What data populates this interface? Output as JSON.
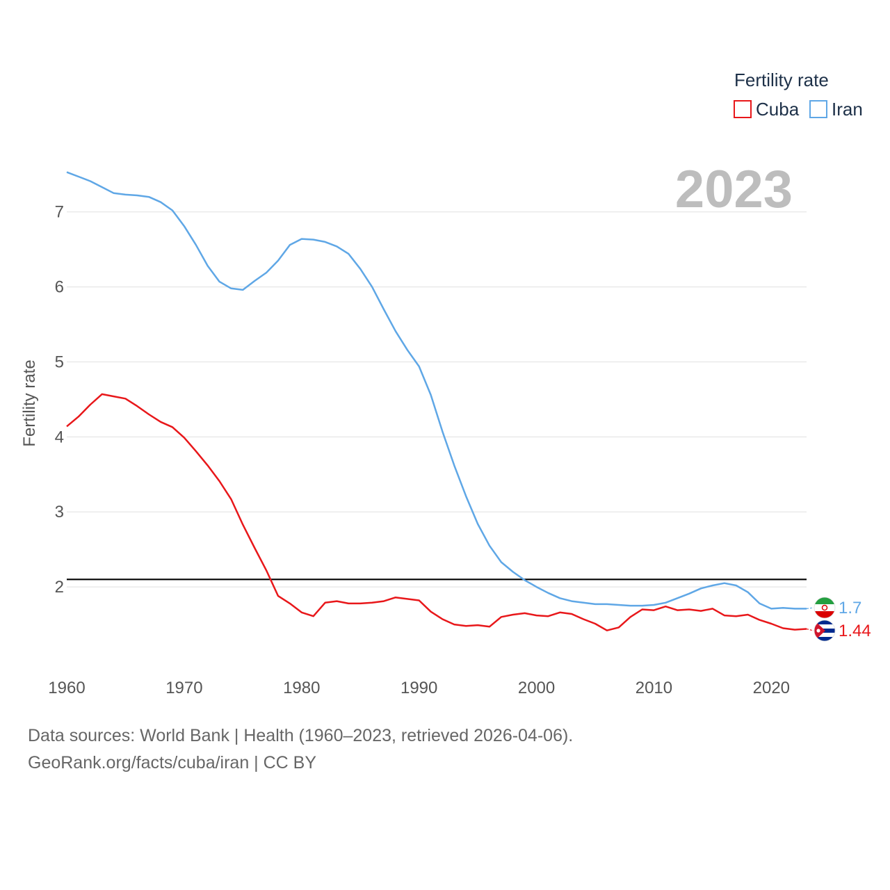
{
  "legend": {
    "title": "Fertility rate",
    "items": [
      {
        "name": "Cuba",
        "color": "#e8171a"
      },
      {
        "name": "Iran",
        "color": "#5fa7e6"
      }
    ]
  },
  "year_label": "2023",
  "chart_data": {
    "type": "line",
    "title": "",
    "xlabel": "",
    "ylabel": "Fertility rate",
    "xlim": [
      1960,
      2023
    ],
    "ylim": [
      1.0,
      7.6
    ],
    "x_ticks": [
      1960,
      1970,
      1980,
      1990,
      2000,
      2010,
      2020
    ],
    "y_ticks": [
      2,
      3,
      4,
      5,
      6,
      7
    ],
    "reference_line": {
      "y": 2.1,
      "color": "#000000"
    },
    "x": [
      1960,
      1961,
      1962,
      1963,
      1964,
      1965,
      1966,
      1967,
      1968,
      1969,
      1970,
      1971,
      1972,
      1973,
      1974,
      1975,
      1976,
      1977,
      1978,
      1979,
      1980,
      1981,
      1982,
      1983,
      1984,
      1985,
      1986,
      1987,
      1988,
      1989,
      1990,
      1991,
      1992,
      1993,
      1994,
      1995,
      1996,
      1997,
      1998,
      1999,
      2000,
      2001,
      2002,
      2003,
      2004,
      2005,
      2006,
      2007,
      2008,
      2009,
      2010,
      2011,
      2012,
      2013,
      2014,
      2015,
      2016,
      2017,
      2018,
      2019,
      2020,
      2021,
      2022,
      2023
    ],
    "series": [
      {
        "name": "Cuba",
        "color": "#e8171a",
        "end_label": "1.44",
        "flag": "cuba-flag-icon",
        "values": [
          4.14,
          4.27,
          4.43,
          4.57,
          4.54,
          4.51,
          4.41,
          4.3,
          4.2,
          4.13,
          3.99,
          3.81,
          3.62,
          3.41,
          3.17,
          2.83,
          2.52,
          2.22,
          1.88,
          1.78,
          1.66,
          1.61,
          1.79,
          1.81,
          1.78,
          1.78,
          1.79,
          1.81,
          1.86,
          1.84,
          1.82,
          1.67,
          1.57,
          1.5,
          1.48,
          1.49,
          1.47,
          1.6,
          1.63,
          1.65,
          1.62,
          1.61,
          1.66,
          1.64,
          1.57,
          1.51,
          1.42,
          1.46,
          1.6,
          1.7,
          1.69,
          1.74,
          1.69,
          1.7,
          1.68,
          1.71,
          1.62,
          1.61,
          1.63,
          1.56,
          1.51,
          1.45,
          1.43,
          1.44
        ]
      },
      {
        "name": "Iran",
        "color": "#5fa7e6",
        "end_label": "1.7",
        "flag": "iran-flag-icon",
        "values": [
          7.53,
          7.47,
          7.41,
          7.33,
          7.25,
          7.23,
          7.22,
          7.2,
          7.13,
          7.02,
          6.81,
          6.56,
          6.28,
          6.07,
          5.98,
          5.96,
          6.08,
          6.19,
          6.35,
          6.56,
          6.64,
          6.63,
          6.6,
          6.54,
          6.44,
          6.24,
          6.0,
          5.7,
          5.41,
          5.16,
          4.94,
          4.56,
          4.07,
          3.62,
          3.21,
          2.84,
          2.55,
          2.33,
          2.2,
          2.09,
          2.0,
          1.92,
          1.85,
          1.81,
          1.79,
          1.77,
          1.77,
          1.76,
          1.75,
          1.75,
          1.76,
          1.79,
          1.85,
          1.91,
          1.98,
          2.02,
          2.05,
          2.02,
          1.93,
          1.78,
          1.71,
          1.72,
          1.71,
          1.71
        ]
      }
    ]
  },
  "footer": {
    "source": "Data sources: World Bank | Health (1960–2023, retrieved 2026-04-06).",
    "link": "GeoRank.org/facts/cuba/iran | CC BY"
  }
}
